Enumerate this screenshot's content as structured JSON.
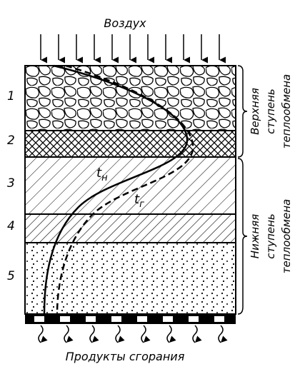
{
  "diagram": {
    "top_label": "Воздух",
    "bottom_label": "Продукты сгорания",
    "layers": [
      "1",
      "2",
      "3",
      "4",
      "5"
    ],
    "upper_zone": [
      "Верхняя",
      "ступень",
      "теплообмена"
    ],
    "lower_zone": [
      "Нижняя",
      "ступень",
      "теплообмена"
    ],
    "curves": [
      {
        "symbol": "t",
        "subscript": "н"
      },
      {
        "symbol": "t",
        "subscript": "г"
      }
    ]
  }
}
